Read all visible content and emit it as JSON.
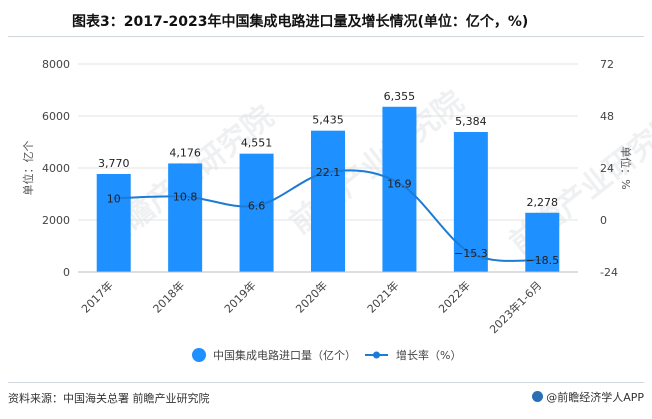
{
  "header": {
    "title": "图表3：2017-2023年中国集成电路进口量及增长情况(单位：亿个，%)"
  },
  "footer": {
    "source": "资料来源：中国海关总署 前瞻产业研究院",
    "brand": "@前瞻经济学人APP"
  },
  "watermark": {
    "text": "前瞻产业研究院"
  },
  "chart_data": {
    "type": "bar",
    "title": "2017-2023年中国集成电路进口量及增长情况",
    "categories": [
      "2017年",
      "2018年",
      "2019年",
      "2020年",
      "2021年",
      "2022年",
      "2023年1-6月"
    ],
    "series": [
      {
        "name": "中国集成电路进口量（亿个）",
        "type": "bar",
        "axis": "left",
        "color": "#1e90ff",
        "values": [
          3770,
          4176,
          4551,
          5435,
          6355,
          5384,
          2278
        ],
        "labels": [
          "3,770",
          "4,176",
          "4,551",
          "5,435",
          "6,355",
          "5,384",
          "2,278"
        ]
      },
      {
        "name": "增长率（%）",
        "type": "line",
        "axis": "right",
        "color": "#1c7bd4",
        "values": [
          10,
          10.8,
          6.6,
          22.1,
          16.9,
          -15.3,
          -18.5
        ],
        "labels": [
          "10",
          "10.8",
          "6.6",
          "22.1",
          "16.9",
          "−15.3",
          "−18.5"
        ]
      }
    ],
    "ylabel_left": "单位：亿个",
    "ylabel_right": "单位：%",
    "ylim_left": [
      0,
      8000
    ],
    "yticks_left": [
      "0",
      "2000",
      "4000",
      "6000",
      "8000"
    ],
    "ylim_right": [
      -24,
      72
    ],
    "yticks_right": [
      "-24",
      "0",
      "24",
      "48",
      "72"
    ],
    "legend_position": "bottom"
  }
}
